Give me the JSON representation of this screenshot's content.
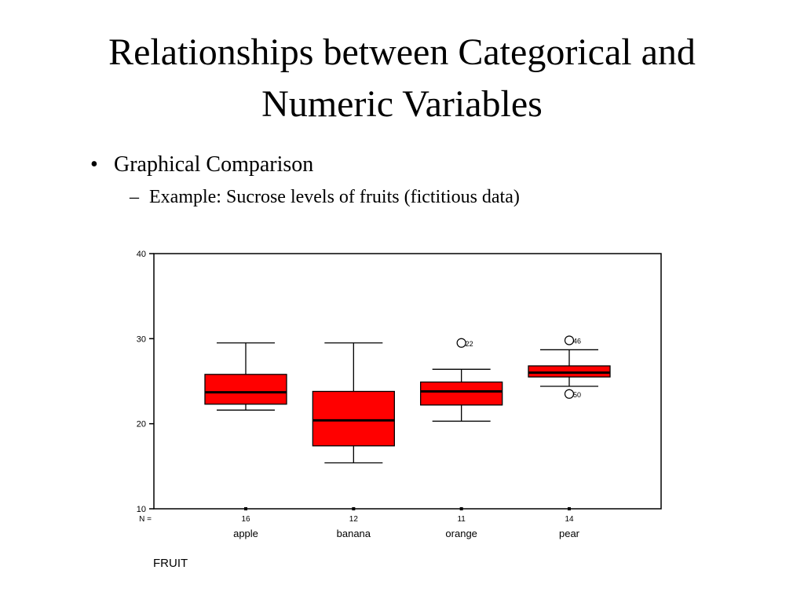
{
  "slide": {
    "title_lines": [
      "Relationships between Categorical and",
      "Numeric Variables"
    ],
    "bullet": "Graphical Comparison",
    "sub_bullet": "Example: Sucrose levels of fruits (fictitious data)"
  },
  "chart_data": {
    "type": "boxplot",
    "categories": [
      "apple",
      "banana",
      "orange",
      "pear"
    ],
    "x_label": "FRUIT",
    "n_label": "N =",
    "n": [
      16,
      12,
      11,
      14
    ],
    "color": "#ff0000",
    "whisker_low": [
      21.6,
      15.4,
      20.3,
      24.4
    ],
    "q1": [
      22.3,
      17.4,
      22.2,
      25.5
    ],
    "median": [
      23.7,
      20.4,
      23.8,
      26.0
    ],
    "q3": [
      25.8,
      23.8,
      24.9,
      26.8
    ],
    "whisker_high": [
      29.5,
      29.5,
      26.4,
      28.7
    ],
    "outliers": [
      [],
      [],
      [
        {
          "value": 29.5,
          "label": "22"
        }
      ],
      [
        {
          "value": 29.8,
          "label": "46"
        },
        {
          "value": 23.5,
          "label": "50"
        }
      ]
    ],
    "ylim": [
      10,
      40
    ],
    "yticks": [
      10,
      20,
      30,
      40
    ]
  }
}
